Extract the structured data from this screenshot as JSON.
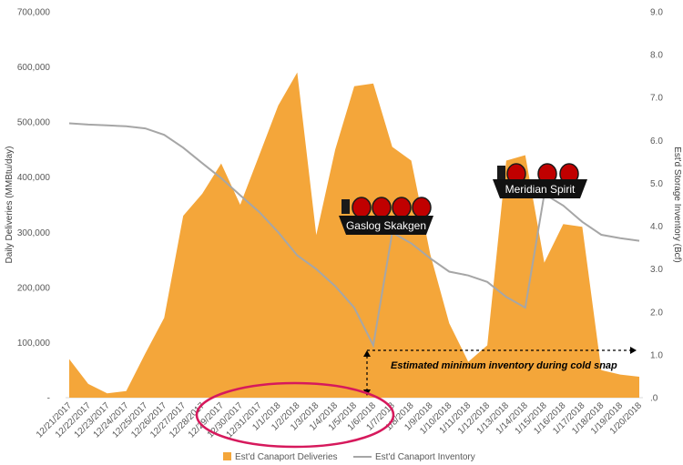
{
  "chart_data": {
    "type": "area",
    "categories": [
      "12/21/2017",
      "12/22/2017",
      "12/23/2017",
      "12/24/2017",
      "12/25/2017",
      "12/26/2017",
      "12/27/2017",
      "12/28/2017",
      "12/29/2017",
      "12/30/2017",
      "12/31/2017",
      "1/1/2018",
      "1/2/2018",
      "1/3/2018",
      "1/4/2018",
      "1/5/2018",
      "1/6/2018",
      "1/7/2018",
      "1/8/2018",
      "1/9/2018",
      "1/10/2018",
      "1/11/2018",
      "1/12/2018",
      "1/13/2018",
      "1/14/2018",
      "1/15/2018",
      "1/16/2018",
      "1/17/2018",
      "1/18/2018",
      "1/19/2018",
      "1/20/2018"
    ],
    "ylabel": "Daily Deliveries (MMBtu/day)",
    "y2label": "Est'd Storage Inventory (Bcf)",
    "ylim": [
      0,
      700000
    ],
    "y2lim": [
      0,
      9
    ],
    "yticks": [
      "-",
      "100,000",
      "200,000",
      "300,000",
      "400,000",
      "500,000",
      "600,000",
      "700,000"
    ],
    "y2ticks": [
      ".0",
      "1.0",
      "2.0",
      "3.0",
      "4.0",
      "5.0",
      "6.0",
      "7.0",
      "8.0",
      "9.0"
    ],
    "series": [
      {
        "name": "Est'd Canaport Deliveries",
        "axis": "left",
        "color": "#F4A63A",
        "values": [
          70000,
          25000,
          8000,
          12000,
          80000,
          145000,
          330000,
          370000,
          425000,
          350000,
          440000,
          530000,
          590000,
          295000,
          450000,
          565000,
          570000,
          455000,
          430000,
          260000,
          135000,
          65000,
          95000,
          430000,
          440000,
          245000,
          315000,
          310000,
          50000,
          42000,
          38000
        ]
      },
      {
        "name": "Est'd Canaport Inventory",
        "axis": "right",
        "color": "#A6A6A6",
        "values": [
          6.4,
          6.37,
          6.35,
          6.33,
          6.28,
          6.13,
          5.83,
          5.47,
          5.12,
          4.72,
          4.33,
          3.86,
          3.32,
          3.0,
          2.6,
          2.1,
          1.22,
          3.85,
          3.6,
          3.25,
          2.94,
          2.85,
          2.7,
          2.35,
          2.1,
          4.75,
          4.48,
          4.1,
          3.8,
          3.72,
          3.66
        ]
      }
    ],
    "annotations": {
      "ship1": "Gaslog Skakgen",
      "ship2": "Meridian Spirit",
      "note": "Estimated minimum inventory during cold snap"
    },
    "legend": {
      "placement": "bottom-center"
    }
  }
}
